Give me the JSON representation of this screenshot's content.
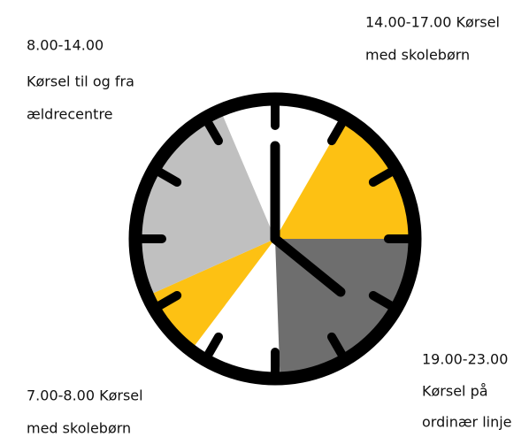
{
  "labels": [
    {
      "lines": [
        "8.00-14.00",
        "Kørsel til og fra",
        "ældrecentre"
      ]
    },
    {
      "lines": [
        "14.00-17.00 Kørsel",
        "med skolebørn"
      ]
    },
    {
      "lines": [
        "19.00-23.00",
        "Kørsel på",
        "ordinær linje"
      ]
    },
    {
      "lines": [
        "7.00-8.00 Kørsel",
        "med skolebørn"
      ]
    }
  ]
}
